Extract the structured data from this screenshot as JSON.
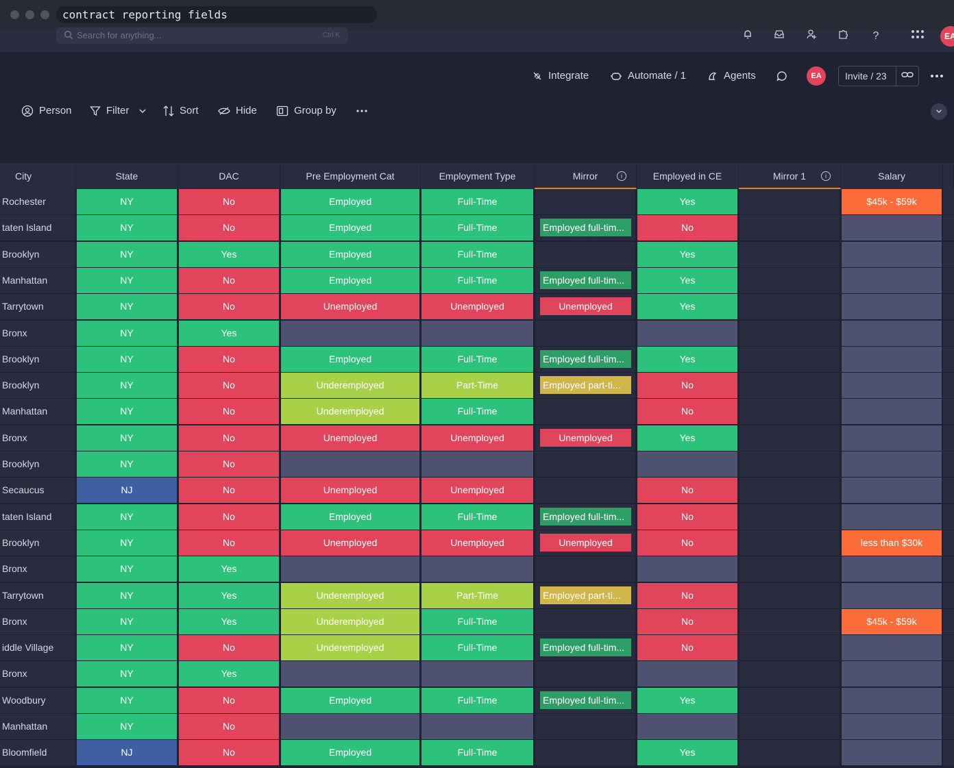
{
  "window": {
    "title": "contract reporting fields"
  },
  "search": {
    "placeholder": "Search for anything...",
    "shortcut": "Ctrl K"
  },
  "board_toolbar": {
    "integrate": "Integrate",
    "automate": "Automate / 1",
    "agents": "Agents",
    "avatar": "EA",
    "invite": "Invite / 23"
  },
  "view_toolbar": {
    "person": "Person",
    "filter": "Filter",
    "sort": "Sort",
    "hide": "Hide",
    "group_by": "Group by"
  },
  "columns": [
    "City",
    "State",
    "DAC",
    "Pre Employment Cat",
    "Employment Type",
    "Mirror",
    "Employed in CE",
    "Mirror 1",
    "Salary"
  ],
  "colors": {
    "green": "#2cc27c",
    "red": "#e2445c",
    "blue": "#3f5fa3",
    "lime": "#a9d147",
    "orange": "#fc6c3a",
    "gray": "#4e5270"
  },
  "rows": [
    {
      "city": "Rochester",
      "state": "NY",
      "dac": "No",
      "pre": "Employed",
      "type": "Full-Time",
      "mirror": "",
      "ce": "Yes",
      "salary": "$45k - $59k"
    },
    {
      "city": "taten Island",
      "state": "NY",
      "dac": "No",
      "pre": "Employed",
      "type": "Full-Time",
      "mirror": "Employed full-tim...",
      "ce": "No",
      "salary": ""
    },
    {
      "city": "Brooklyn",
      "state": "NY",
      "dac": "Yes",
      "pre": "Employed",
      "type": "Full-Time",
      "mirror": "",
      "ce": "Yes",
      "salary": ""
    },
    {
      "city": "Manhattan",
      "state": "NY",
      "dac": "No",
      "pre": "Employed",
      "type": "Full-Time",
      "mirror": "Employed full-tim...",
      "ce": "Yes",
      "salary": ""
    },
    {
      "city": "Tarrytown",
      "state": "NY",
      "dac": "No",
      "pre": "Unemployed",
      "type": "Unemployed",
      "mirror": "Unemployed",
      "ce": "Yes",
      "salary": ""
    },
    {
      "city": "Bronx",
      "state": "NY",
      "dac": "Yes",
      "pre": "",
      "type": "",
      "mirror": "",
      "ce": "",
      "salary": ""
    },
    {
      "city": "Brooklyn",
      "state": "NY",
      "dac": "No",
      "pre": "Employed",
      "type": "Full-Time",
      "mirror": "Employed full-tim...",
      "ce": "Yes",
      "salary": ""
    },
    {
      "city": "Brooklyn",
      "state": "NY",
      "dac": "No",
      "pre": "Underemployed",
      "type": "Part-Time",
      "mirror": "Employed part-ti...",
      "ce": "No",
      "salary": ""
    },
    {
      "city": "Manhattan",
      "state": "NY",
      "dac": "No",
      "pre": "Underemployed",
      "type": "Full-Time",
      "mirror": "",
      "ce": "No",
      "salary": ""
    },
    {
      "city": "Bronx",
      "state": "NY",
      "dac": "No",
      "pre": "Unemployed",
      "type": "Unemployed",
      "mirror": "Unemployed",
      "ce": "Yes",
      "salary": ""
    },
    {
      "city": "Brooklyn",
      "state": "NY",
      "dac": "No",
      "pre": "",
      "type": "",
      "mirror": "",
      "ce": "",
      "salary": ""
    },
    {
      "city": "Secaucus",
      "state": "NJ",
      "dac": "No",
      "pre": "Unemployed",
      "type": "Unemployed",
      "mirror": "",
      "ce": "No",
      "salary": ""
    },
    {
      "city": "taten Island",
      "state": "NY",
      "dac": "No",
      "pre": "Employed",
      "type": "Full-Time",
      "mirror": "Employed full-tim...",
      "ce": "No",
      "salary": ""
    },
    {
      "city": "Brooklyn",
      "state": "NY",
      "dac": "No",
      "pre": "Unemployed",
      "type": "Unemployed",
      "mirror": "Unemployed",
      "ce": "No",
      "salary": "less than $30k"
    },
    {
      "city": "Bronx",
      "state": "NY",
      "dac": "Yes",
      "pre": "",
      "type": "",
      "mirror": "",
      "ce": "",
      "salary": ""
    },
    {
      "city": "Tarrytown",
      "state": "NY",
      "dac": "Yes",
      "pre": "Underemployed",
      "type": "Part-Time",
      "mirror": "Employed part-ti...",
      "ce": "No",
      "salary": ""
    },
    {
      "city": "Bronx",
      "state": "NY",
      "dac": "Yes",
      "pre": "Underemployed",
      "type": "Full-Time",
      "mirror": "",
      "ce": "No",
      "salary": "$45k - $59k"
    },
    {
      "city": "iddle Village",
      "state": "NY",
      "dac": "No",
      "pre": "Underemployed",
      "type": "Full-Time",
      "mirror": "Employed full-tim...",
      "ce": "No",
      "salary": ""
    },
    {
      "city": "Bronx",
      "state": "NY",
      "dac": "Yes",
      "pre": "",
      "type": "",
      "mirror": "",
      "ce": "",
      "salary": ""
    },
    {
      "city": "Woodbury",
      "state": "NY",
      "dac": "No",
      "pre": "Employed",
      "type": "Full-Time",
      "mirror": "Employed full-tim...",
      "ce": "Yes",
      "salary": ""
    },
    {
      "city": "Manhattan",
      "state": "NY",
      "dac": "No",
      "pre": "",
      "type": "",
      "mirror": "",
      "ce": "",
      "salary": ""
    },
    {
      "city": "Bloomfield",
      "state": "NJ",
      "dac": "No",
      "pre": "Employed",
      "type": "Full-Time",
      "mirror": "",
      "ce": "Yes",
      "salary": ""
    }
  ]
}
